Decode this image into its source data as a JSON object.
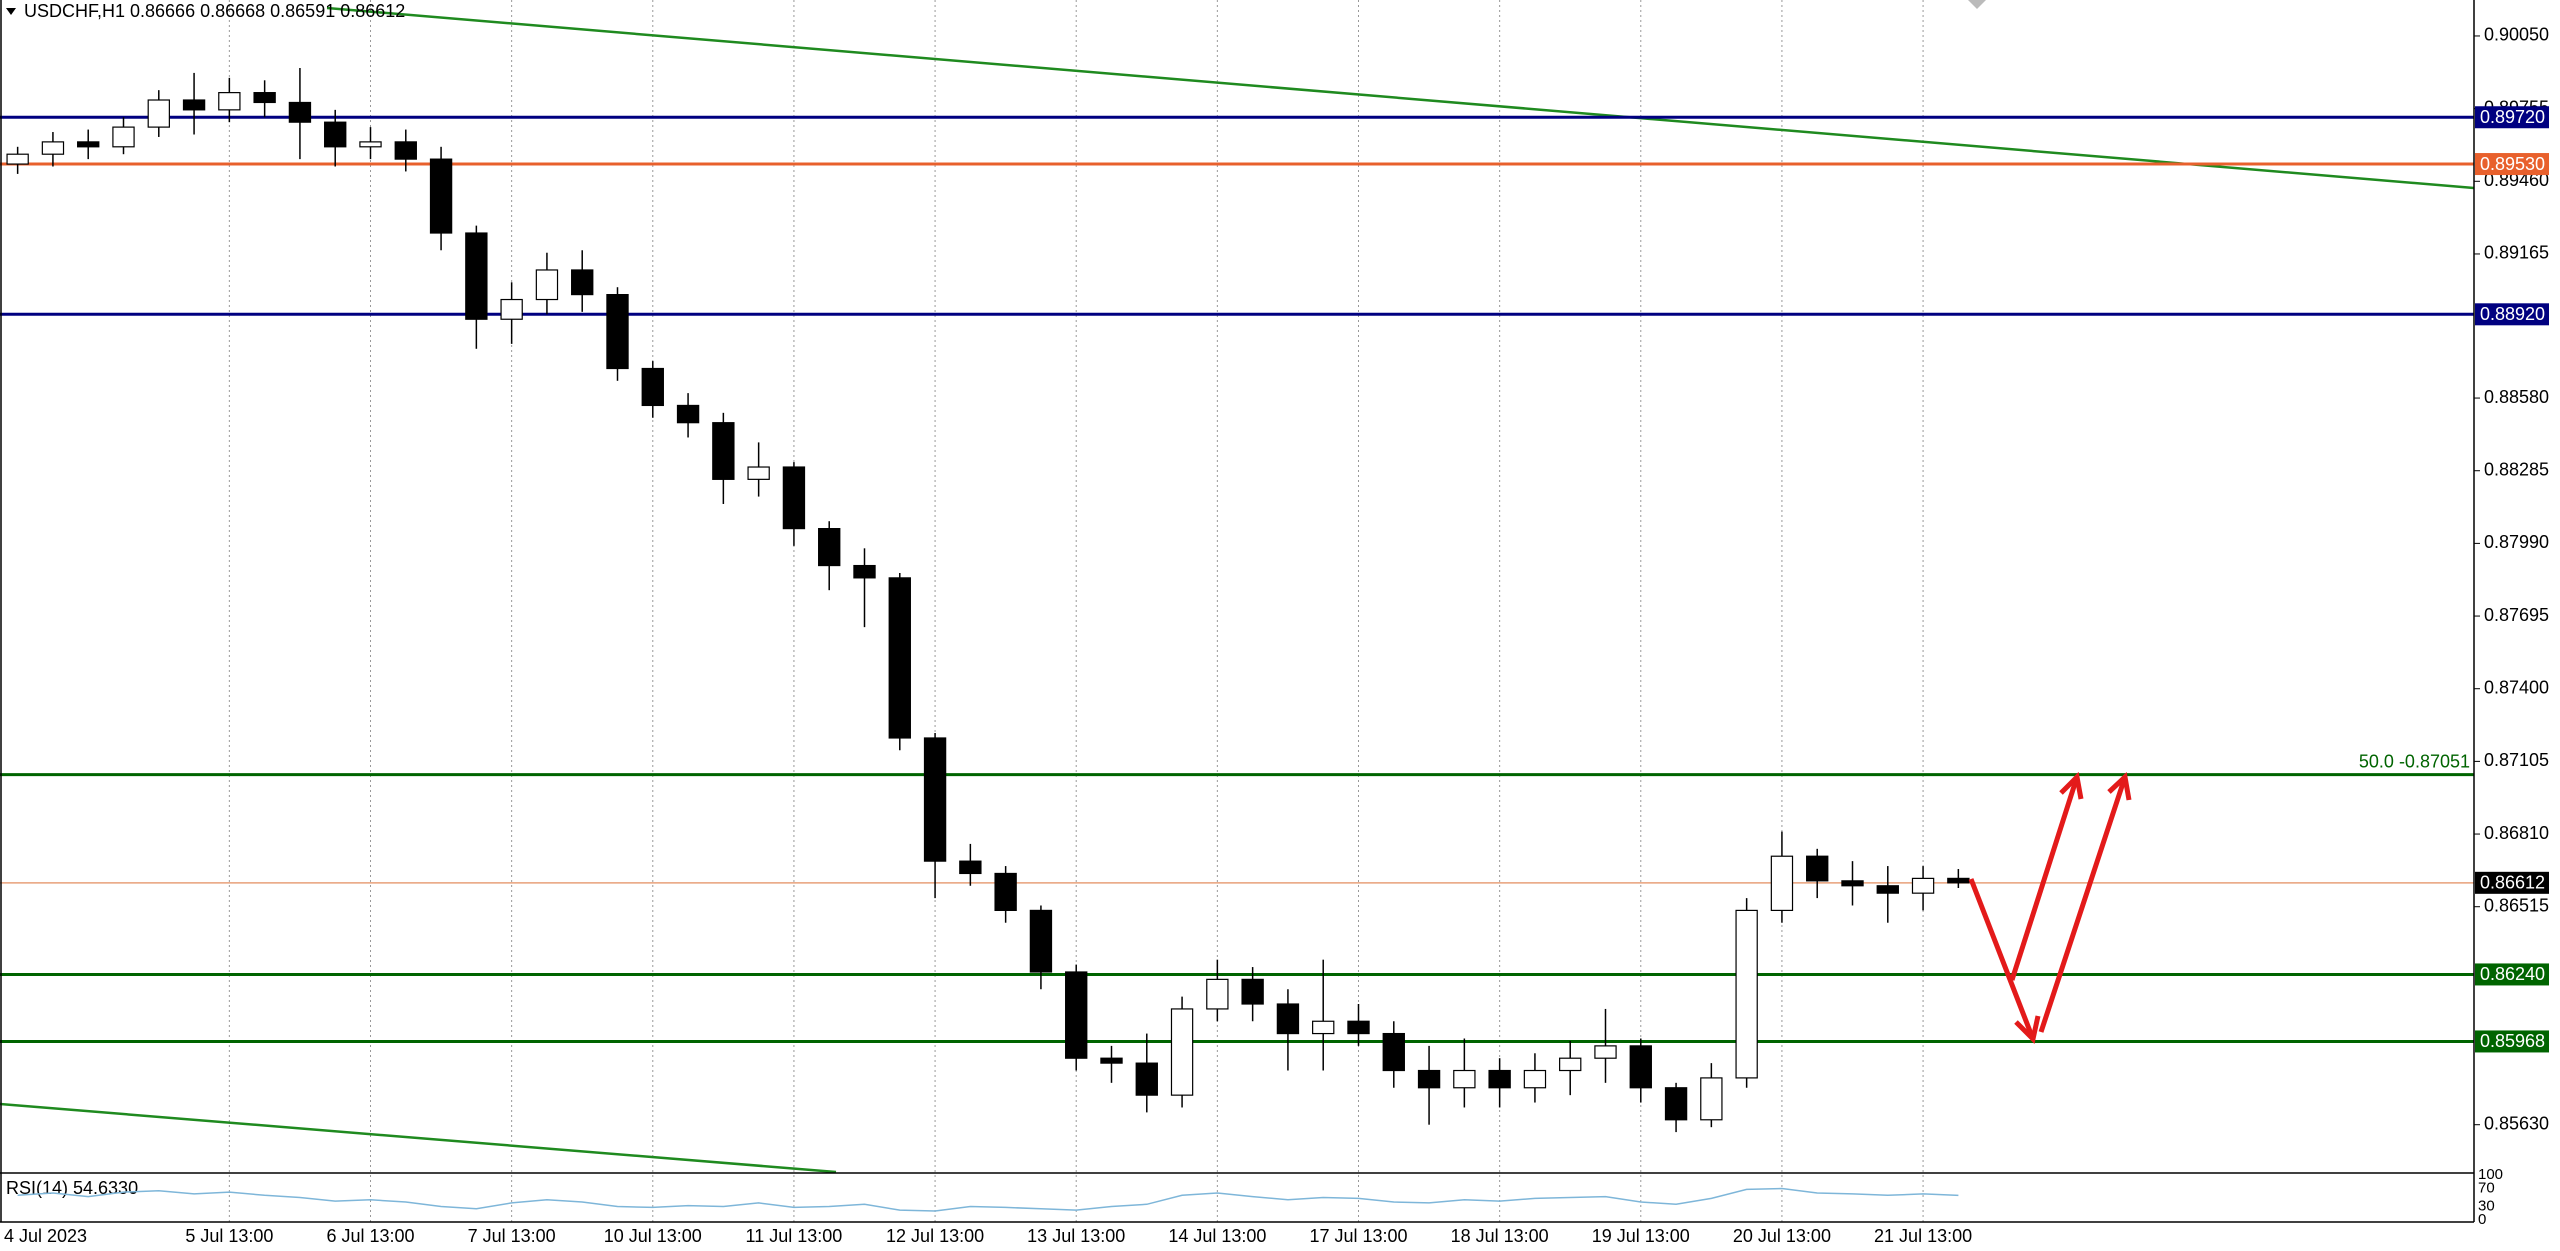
{
  "chart_data": {
    "type": "candlestick",
    "title": "USDCHF,H1  0.86666 0.86668 0.86591 0.86612",
    "categories": [
      "4 Jul 2023",
      null,
      null,
      null,
      null,
      null,
      "5 Jul 13:00",
      null,
      null,
      null,
      "6 Jul 13:00",
      null,
      null,
      null,
      "7 Jul 13:00",
      null,
      null,
      null,
      "10 Jul 13:00",
      null,
      null,
      null,
      "11 Jul 13:00",
      null,
      null,
      null,
      "12 Jul 13:00",
      null,
      null,
      null,
      "13 Jul 13:00",
      null,
      null,
      null,
      "14 Jul 13:00",
      null,
      null,
      null,
      "17 Jul 13:00",
      null,
      null,
      null,
      "18 Jul 13:00",
      null,
      null,
      null,
      "19 Jul 13:00",
      null,
      null,
      null,
      "20 Jul 13:00",
      null,
      null,
      null,
      "21 Jul 13:00",
      null
    ],
    "open": [
      0.8953,
      0.8957,
      0.8962,
      0.896,
      0.8968,
      0.8979,
      0.8975,
      0.8982,
      0.8978,
      0.897,
      0.896,
      0.8962,
      0.8955,
      0.8925,
      0.889,
      0.8898,
      0.891,
      0.89,
      0.887,
      0.8855,
      0.8848,
      0.8825,
      0.883,
      0.8805,
      0.879,
      0.8785,
      0.872,
      0.867,
      0.8665,
      0.865,
      0.8625,
      0.859,
      0.8588,
      0.8575,
      0.861,
      0.8622,
      0.8612,
      0.86,
      0.8605,
      0.86,
      0.8585,
      0.8578,
      0.8585,
      0.8578,
      0.8585,
      0.859,
      0.8595,
      0.8578,
      0.8565,
      0.8582,
      0.865,
      0.8672,
      0.8662,
      0.866,
      0.8657,
      0.8663
    ],
    "high": [
      0.896,
      0.8966,
      0.8967,
      0.8972,
      0.8983,
      0.899,
      0.8988,
      0.8987,
      0.8992,
      0.8975,
      0.8968,
      0.8967,
      0.896,
      0.8928,
      0.8905,
      0.8917,
      0.8918,
      0.8903,
      0.8873,
      0.886,
      0.8852,
      0.884,
      0.8832,
      0.8808,
      0.8797,
      0.8787,
      0.8722,
      0.8677,
      0.8668,
      0.8652,
      0.8628,
      0.8595,
      0.86,
      0.8615,
      0.863,
      0.8627,
      0.8618,
      0.863,
      0.8612,
      0.8605,
      0.8595,
      0.8598,
      0.859,
      0.8592,
      0.8597,
      0.861,
      0.8598,
      0.858,
      0.8588,
      0.8655,
      0.8682,
      0.8675,
      0.867,
      0.8668,
      0.8668,
      0.86668
    ],
    "low": [
      0.8949,
      0.8952,
      0.8955,
      0.8957,
      0.8964,
      0.8965,
      0.897,
      0.8972,
      0.8955,
      0.8952,
      0.8955,
      0.895,
      0.8918,
      0.8878,
      0.888,
      0.8892,
      0.8893,
      0.8865,
      0.885,
      0.8842,
      0.8815,
      0.8818,
      0.8798,
      0.878,
      0.8765,
      0.8715,
      0.8655,
      0.866,
      0.8645,
      0.8618,
      0.8585,
      0.858,
      0.8568,
      0.857,
      0.8605,
      0.8605,
      0.8585,
      0.8585,
      0.8595,
      0.8578,
      0.8563,
      0.857,
      0.857,
      0.8572,
      0.8575,
      0.858,
      0.8572,
      0.856,
      0.8562,
      0.8578,
      0.8645,
      0.8655,
      0.8652,
      0.8645,
      0.865,
      0.86591
    ],
    "close": [
      0.8957,
      0.8962,
      0.896,
      0.8968,
      0.8979,
      0.8975,
      0.8982,
      0.8978,
      0.897,
      0.896,
      0.8962,
      0.8955,
      0.8925,
      0.889,
      0.8898,
      0.891,
      0.89,
      0.887,
      0.8855,
      0.8848,
      0.8825,
      0.883,
      0.8805,
      0.879,
      0.8785,
      0.872,
      0.867,
      0.8665,
      0.865,
      0.8625,
      0.859,
      0.8588,
      0.8575,
      0.861,
      0.8622,
      0.8612,
      0.86,
      0.8605,
      0.86,
      0.8585,
      0.8578,
      0.8585,
      0.8578,
      0.8585,
      0.859,
      0.8595,
      0.8578,
      0.8565,
      0.8582,
      0.865,
      0.8672,
      0.8662,
      0.866,
      0.8657,
      0.8663,
      0.86612
    ],
    "up_color": "#ffffff",
    "down_color": "#000000",
    "ylim": [
      0.85438,
      0.90196
    ],
    "yticks": [
      {
        "value": 0.9005,
        "label": "0.90050"
      },
      {
        "value": 0.89755,
        "label": "0.89755"
      },
      {
        "value": 0.8946,
        "label": "0.89460"
      },
      {
        "value": 0.89165,
        "label": "0.89165"
      },
      {
        "value": 0.8858,
        "label": "0.88580"
      },
      {
        "value": 0.88285,
        "label": "0.88285"
      },
      {
        "value": 0.8799,
        "label": "0.87990"
      },
      {
        "value": 0.87695,
        "label": "0.87695"
      },
      {
        "value": 0.874,
        "label": "0.87400"
      },
      {
        "value": 0.87105,
        "label": "0.87105"
      },
      {
        "value": 0.8681,
        "label": "0.86810"
      },
      {
        "value": 0.86515,
        "label": "0.86515"
      },
      {
        "value": 0.8563,
        "label": "0.85630"
      }
    ],
    "grid": true,
    "levels": [
      {
        "value": 0.8972,
        "label": "0.89720",
        "color": "#000080"
      },
      {
        "value": 0.8953,
        "label": "0.89530",
        "color": "#e8602c"
      },
      {
        "value": 0.8892,
        "label": "0.88920",
        "color": "#000080"
      },
      {
        "value": 0.87051,
        "label": "50.0 -0.87051",
        "color": "#006400",
        "label_position": "line"
      },
      {
        "value": 0.86612,
        "label": "0.86612",
        "color": "#000000",
        "line_color": "#e8a07a"
      },
      {
        "value": 0.8624,
        "label": "0.86240",
        "color": "#006400"
      },
      {
        "value": 0.85968,
        "label": "0.85968",
        "color": "#006400"
      }
    ],
    "rsi": {
      "label": "RSI(14) 54.6330",
      "color": "#7eb6d9",
      "ylim": [
        0,
        100
      ],
      "yticks": [
        100,
        70,
        30,
        0
      ],
      "values": [
        55,
        60,
        52,
        62,
        65,
        58,
        62,
        55,
        50,
        42,
        45,
        40,
        30,
        25,
        38,
        45,
        40,
        30,
        28,
        32,
        30,
        38,
        28,
        30,
        35,
        22,
        20,
        30,
        28,
        25,
        22,
        30,
        35,
        55,
        60,
        52,
        45,
        50,
        48,
        40,
        38,
        45,
        42,
        48,
        50,
        52,
        40,
        35,
        48,
        68,
        70,
        60,
        58,
        55,
        58,
        54.633
      ]
    }
  }
}
